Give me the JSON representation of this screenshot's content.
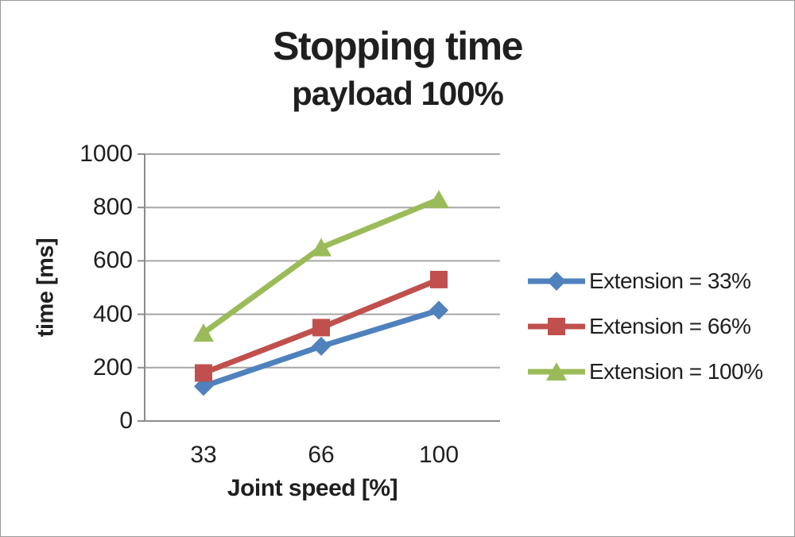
{
  "title": "Stopping time",
  "subtitle": "payload 100%",
  "chart_data": {
    "type": "line",
    "title": "Stopping time",
    "subtitle": "payload 100%",
    "xlabel": "Joint speed [%]",
    "ylabel": "time [ms]",
    "categories": [
      "33",
      "66",
      "100"
    ],
    "ylim": [
      0,
      1000
    ],
    "yticks": [
      0,
      200,
      400,
      600,
      800,
      1000
    ],
    "grid": true,
    "legend_position": "right",
    "series": [
      {
        "name": "Extension = 33%",
        "marker": "diamond",
        "color": "#4F81BD",
        "values": [
          130,
          280,
          415
        ]
      },
      {
        "name": "Extension = 66%",
        "marker": "square",
        "color": "#C0504D",
        "values": [
          180,
          350,
          530
        ]
      },
      {
        "name": "Extension = 100%",
        "marker": "triangle",
        "color": "#9BBB59",
        "values": [
          330,
          650,
          830
        ]
      }
    ]
  },
  "colors": {
    "background": "#FFFFFF",
    "gridline": "#A6A6A6",
    "axis": "#8C8C8C",
    "text": "#1F1F1F",
    "frame_border": "#9A9A9A"
  }
}
